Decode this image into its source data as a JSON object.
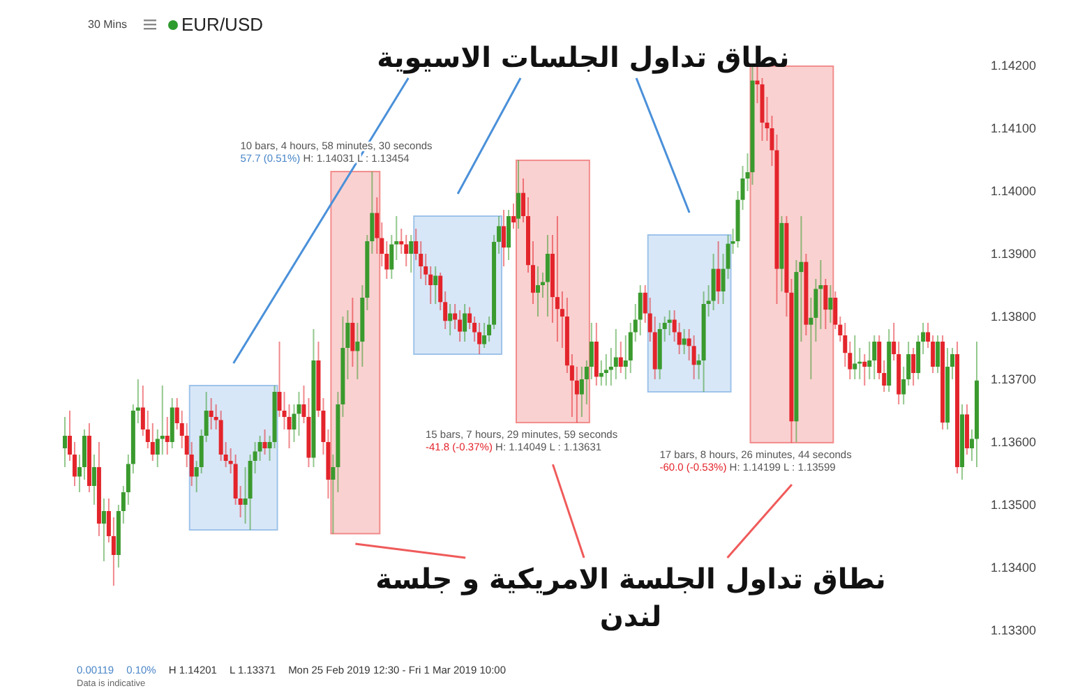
{
  "chart_data": {
    "type": "candlestick",
    "title": "EUR/USD",
    "subtitle": "30 Mins",
    "categories": [
      null,
      null,
      null,
      null,
      null,
      null,
      null,
      null,
      null,
      null,
      null,
      null,
      null,
      null,
      null,
      null,
      null,
      null,
      null,
      null,
      null,
      null,
      null,
      null,
      null,
      null,
      null,
      null,
      null,
      null,
      null,
      null,
      null,
      null,
      null,
      null,
      null,
      null,
      null,
      null,
      null,
      null,
      null,
      null,
      null,
      null,
      null,
      null,
      null,
      null,
      null,
      null,
      null,
      null,
      null,
      null,
      null,
      null,
      null,
      null,
      null,
      null,
      null,
      null,
      null,
      null,
      null,
      null,
      null,
      null,
      null,
      null,
      null,
      null,
      null,
      null,
      null,
      null,
      null,
      null,
      null,
      null,
      null,
      null,
      null,
      null,
      null,
      null,
      null,
      null,
      null,
      null,
      null,
      null,
      null,
      null,
      null,
      null,
      null,
      null,
      null,
      null,
      null,
      null,
      null,
      null,
      null,
      null,
      null,
      null,
      null,
      null,
      null,
      null,
      null,
      null,
      null,
      null,
      null,
      null,
      null,
      null,
      null,
      null,
      null,
      null,
      null,
      null,
      null,
      null,
      null,
      null,
      null,
      null,
      null,
      null,
      null,
      null,
      null,
      null,
      null,
      null,
      null,
      null,
      null,
      null,
      null,
      null,
      null,
      null,
      null,
      null,
      null,
      null,
      null,
      null,
      null,
      null,
      null,
      null,
      null,
      null,
      null,
      null,
      null,
      null,
      null,
      null,
      null,
      null,
      null,
      null,
      null,
      null,
      null,
      null,
      null,
      null,
      null,
      null,
      null,
      null,
      null,
      null,
      null,
      null,
      null,
      null
    ],
    "ohlc": [
      [
        1.1359,
        1.1364,
        1.1356,
        1.1361
      ],
      [
        1.1361,
        1.1365,
        1.1357,
        1.1358
      ],
      [
        1.1358,
        1.136,
        1.1353,
        1.13545
      ],
      [
        1.13545,
        1.1358,
        1.1352,
        1.1356
      ],
      [
        1.1356,
        1.1362,
        1.1354,
        1.1361
      ],
      [
        1.1361,
        1.1363,
        1.1352,
        1.1353
      ],
      [
        1.1353,
        1.1358,
        1.135,
        1.1356
      ],
      [
        1.1356,
        1.136,
        1.1345,
        1.1347
      ],
      [
        1.1347,
        1.1351,
        1.1341,
        1.1349
      ],
      [
        1.1349,
        1.1351,
        1.1344,
        1.1345
      ],
      [
        1.1345,
        1.1348,
        1.13371,
        1.1342
      ],
      [
        1.1342,
        1.135,
        1.134,
        1.1349
      ],
      [
        1.1349,
        1.1353,
        1.1347,
        1.1352
      ],
      [
        1.1352,
        1.1358,
        1.135,
        1.13565
      ],
      [
        1.13565,
        1.1366,
        1.1355,
        1.1365
      ],
      [
        1.1365,
        1.137,
        1.1363,
        1.13655
      ],
      [
        1.13655,
        1.1369,
        1.1361,
        1.1362
      ],
      [
        1.1362,
        1.1365,
        1.1359,
        1.136
      ],
      [
        1.136,
        1.1363,
        1.1357,
        1.1358
      ],
      [
        1.1358,
        1.1362,
        1.1356,
        1.13605
      ],
      [
        1.13605,
        1.1369,
        1.1358,
        1.1361
      ],
      [
        1.1361,
        1.1364,
        1.1358,
        1.136
      ],
      [
        1.136,
        1.1367,
        1.1359,
        1.13655
      ],
      [
        1.13655,
        1.1367,
        1.1362,
        1.1363
      ],
      [
        1.1363,
        1.1365,
        1.1359,
        1.1361
      ],
      [
        1.1361,
        1.1363,
        1.1356,
        1.1358
      ],
      [
        1.1358,
        1.136,
        1.1353,
        1.13545
      ],
      [
        1.13545,
        1.1357,
        1.1352,
        1.1356
      ],
      [
        1.1356,
        1.1362,
        1.1355,
        1.1361
      ],
      [
        1.1361,
        1.1368,
        1.136,
        1.1365
      ],
      [
        1.1365,
        1.1367,
        1.1362,
        1.1364
      ],
      [
        1.1364,
        1.1366,
        1.1362,
        1.13635
      ],
      [
        1.13635,
        1.1365,
        1.1357,
        1.1358
      ],
      [
        1.1358,
        1.136,
        1.1356,
        1.1357
      ],
      [
        1.1357,
        1.1359,
        1.1355,
        1.13565
      ],
      [
        1.13565,
        1.1358,
        1.135,
        1.1351
      ],
      [
        1.1351,
        1.1353,
        1.1348,
        1.135
      ],
      [
        1.135,
        1.1356,
        1.1347,
        1.1351
      ],
      [
        1.1351,
        1.1358,
        1.1346,
        1.1357
      ],
      [
        1.1357,
        1.136,
        1.1355,
        1.13585
      ],
      [
        1.13585,
        1.1361,
        1.1357,
        1.136
      ],
      [
        1.136,
        1.1362,
        1.1358,
        1.1359
      ],
      [
        1.1359,
        1.1361,
        1.1357,
        1.136
      ],
      [
        1.136,
        1.1369,
        1.1359,
        1.1368
      ],
      [
        1.1368,
        1.1376,
        1.1364,
        1.1365
      ],
      [
        1.1365,
        1.1368,
        1.1362,
        1.1364
      ],
      [
        1.1364,
        1.1366,
        1.1359,
        1.1362
      ],
      [
        1.1362,
        1.1366,
        1.136,
        1.13645
      ],
      [
        1.13645,
        1.1368,
        1.1361,
        1.1366
      ],
      [
        1.1366,
        1.1369,
        1.1363,
        1.1364
      ],
      [
        1.1364,
        1.1367,
        1.1356,
        1.13575
      ],
      [
        1.13575,
        1.1378,
        1.1356,
        1.1373
      ],
      [
        1.1373,
        1.1376,
        1.1364,
        1.1365
      ],
      [
        1.1365,
        1.1367,
        1.1358,
        1.136
      ],
      [
        1.136,
        1.1362,
        1.1351,
        1.1354
      ],
      [
        1.1354,
        1.1358,
        1.13454,
        1.1356
      ],
      [
        1.1356,
        1.1368,
        1.1352,
        1.1366
      ],
      [
        1.1366,
        1.138,
        1.1364,
        1.1375
      ],
      [
        1.1375,
        1.1381,
        1.137,
        1.1379
      ],
      [
        1.1379,
        1.1383,
        1.1372,
        1.13745
      ],
      [
        1.13745,
        1.1379,
        1.137,
        1.1376
      ],
      [
        1.1376,
        1.1385,
        1.1372,
        1.1383
      ],
      [
        1.1383,
        1.1393,
        1.1381,
        1.1392
      ],
      [
        1.1392,
        1.14031,
        1.139,
        1.13965
      ],
      [
        1.13965,
        1.1399,
        1.139,
        1.13925
      ],
      [
        1.13925,
        1.1395,
        1.1388,
        1.139
      ],
      [
        1.139,
        1.1392,
        1.1386,
        1.13875
      ],
      [
        1.13875,
        1.1393,
        1.1386,
        1.13915
      ],
      [
        1.13915,
        1.1396,
        1.1389,
        1.1392
      ],
      [
        1.1392,
        1.1394,
        1.139,
        1.13915
      ],
      [
        1.13915,
        1.1393,
        1.1388,
        1.139
      ],
      [
        1.139,
        1.1393,
        1.1387,
        1.1392
      ],
      [
        1.1392,
        1.1394,
        1.1389,
        1.139
      ],
      [
        1.139,
        1.1392,
        1.1386,
        1.1388
      ],
      [
        1.1388,
        1.139,
        1.1385,
        1.13867
      ],
      [
        1.13867,
        1.1388,
        1.1382,
        1.1385
      ],
      [
        1.1385,
        1.1388,
        1.1382,
        1.13865
      ],
      [
        1.13865,
        1.1387,
        1.1381,
        1.13823
      ],
      [
        1.13823,
        1.1384,
        1.1378,
        1.13793
      ],
      [
        1.13793,
        1.1382,
        1.1377,
        1.13805
      ],
      [
        1.13805,
        1.1382,
        1.1378,
        1.13795
      ],
      [
        1.13795,
        1.1381,
        1.1376,
        1.13776
      ],
      [
        1.13776,
        1.1382,
        1.1376,
        1.13805
      ],
      [
        1.13805,
        1.13815,
        1.1378,
        1.1379
      ],
      [
        1.1379,
        1.138,
        1.1376,
        1.13775
      ],
      [
        1.13775,
        1.1379,
        1.1374,
        1.13756
      ],
      [
        1.13756,
        1.1379,
        1.1375,
        1.1377
      ],
      [
        1.1377,
        1.138,
        1.1376,
        1.13787
      ],
      [
        1.13787,
        1.1393,
        1.1378,
        1.13919
      ],
      [
        1.13919,
        1.1396,
        1.139,
        1.13944
      ],
      [
        1.13944,
        1.1397,
        1.1388,
        1.1391
      ],
      [
        1.1391,
        1.1397,
        1.1389,
        1.1396
      ],
      [
        1.1396,
        1.1398,
        1.1394,
        1.1395
      ],
      [
        1.13956,
        1.14049,
        1.1394,
        1.13997
      ],
      [
        1.13997,
        1.1402,
        1.1395,
        1.1396
      ],
      [
        1.1396,
        1.1399,
        1.1387,
        1.13882
      ],
      [
        1.13882,
        1.1392,
        1.1382,
        1.13838
      ],
      [
        1.13838,
        1.1388,
        1.138,
        1.1385
      ],
      [
        1.1385,
        1.1387,
        1.1383,
        1.13855
      ],
      [
        1.13855,
        1.1393,
        1.138,
        1.139
      ],
      [
        1.139,
        1.1393,
        1.1379,
        1.13831
      ],
      [
        1.13831,
        1.1396,
        1.1376,
        1.13812
      ],
      [
        1.13812,
        1.1384,
        1.1375,
        1.138
      ],
      [
        1.138,
        1.1383,
        1.1371,
        1.13722
      ],
      [
        1.13722,
        1.1374,
        1.1364,
        1.13698
      ],
      [
        1.13698,
        1.1372,
        1.13631,
        1.13676
      ],
      [
        1.13676,
        1.1372,
        1.1364,
        1.137
      ],
      [
        1.137,
        1.1373,
        1.1366,
        1.1372
      ],
      [
        1.1372,
        1.1379,
        1.137,
        1.1376
      ],
      [
        1.1376,
        1.1379,
        1.1369,
        1.13704
      ],
      [
        1.13704,
        1.1373,
        1.1369,
        1.1371
      ],
      [
        1.1371,
        1.1374,
        1.1369,
        1.13715
      ],
      [
        1.13715,
        1.1375,
        1.1369,
        1.1372
      ],
      [
        1.1372,
        1.1378,
        1.137,
        1.13735
      ],
      [
        1.13735,
        1.1376,
        1.1371,
        1.1372
      ],
      [
        1.1372,
        1.1377,
        1.137,
        1.1373
      ],
      [
        1.1373,
        1.1379,
        1.1371,
        1.13775
      ],
      [
        1.13775,
        1.1382,
        1.1376,
        1.13795
      ],
      [
        1.13795,
        1.1385,
        1.1377,
        1.13838
      ],
      [
        1.13838,
        1.1385,
        1.1379,
        1.13805
      ],
      [
        1.13805,
        1.1383,
        1.1376,
        1.13775
      ],
      [
        1.13775,
        1.138,
        1.137,
        1.13716
      ],
      [
        1.13716,
        1.1379,
        1.137,
        1.1378
      ],
      [
        1.1378,
        1.138,
        1.1376,
        1.1379
      ],
      [
        1.1379,
        1.1381,
        1.1377,
        1.13795
      ],
      [
        1.13795,
        1.1381,
        1.1376,
        1.13775
      ],
      [
        1.13775,
        1.1379,
        1.1374,
        1.13755
      ],
      [
        1.13755,
        1.1378,
        1.1374,
        1.13765
      ],
      [
        1.13765,
        1.1378,
        1.1373,
        1.13753
      ],
      [
        1.13753,
        1.1377,
        1.137,
        1.13723
      ],
      [
        1.13723,
        1.1374,
        1.137,
        1.1373
      ],
      [
        1.1373,
        1.1384,
        1.1368,
        1.1382
      ],
      [
        1.1382,
        1.1385,
        1.138,
        1.13825
      ],
      [
        1.13825,
        1.139,
        1.1381,
        1.13876
      ],
      [
        1.13876,
        1.1392,
        1.1382,
        1.1384
      ],
      [
        1.1384,
        1.139,
        1.1382,
        1.13876
      ],
      [
        1.13876,
        1.1393,
        1.1386,
        1.13916
      ],
      [
        1.13916,
        1.1394,
        1.139,
        1.1392
      ],
      [
        1.1392,
        1.14,
        1.1391,
        1.13986
      ],
      [
        1.13986,
        1.1404,
        1.1397,
        1.1402
      ],
      [
        1.1402,
        1.1406,
        1.14,
        1.1403
      ],
      [
        1.1403,
        1.14199,
        1.1401,
        1.14176
      ],
      [
        1.14176,
        1.14199,
        1.1414,
        1.1417
      ],
      [
        1.1417,
        1.1418,
        1.1408,
        1.14109
      ],
      [
        1.14109,
        1.1415,
        1.1408,
        1.141
      ],
      [
        1.141,
        1.1412,
        1.1404,
        1.14065
      ],
      [
        1.14065,
        1.1409,
        1.1382,
        1.13876
      ],
      [
        1.13876,
        1.1396,
        1.1384,
        1.13949
      ],
      [
        1.13949,
        1.1396,
        1.138,
        1.13838
      ],
      [
        1.13838,
        1.1386,
        1.13599,
        1.13633
      ],
      [
        1.13633,
        1.1389,
        1.136,
        1.13871
      ],
      [
        1.13871,
        1.1396,
        1.1376,
        1.13887
      ],
      [
        1.13887,
        1.139,
        1.1377,
        1.13787
      ],
      [
        1.13787,
        1.1383,
        1.137,
        1.13798
      ],
      [
        1.13798,
        1.1386,
        1.1376,
        1.13844
      ],
      [
        1.13844,
        1.1389,
        1.1378,
        1.1385
      ],
      [
        1.1385,
        1.1386,
        1.1378,
        1.13811
      ],
      [
        1.13811,
        1.1385,
        1.1379,
        1.1383
      ],
      [
        1.1383,
        1.1384,
        1.1378,
        1.13787
      ],
      [
        1.13787,
        1.138,
        1.1376,
        1.1377
      ],
      [
        1.1377,
        1.1379,
        1.1372,
        1.13742
      ],
      [
        1.13742,
        1.1376,
        1.137,
        1.13716
      ],
      [
        1.13716,
        1.1377,
        1.137,
        1.13725
      ],
      [
        1.13725,
        1.1375,
        1.137,
        1.13728
      ],
      [
        1.13728,
        1.1374,
        1.1369,
        1.1372
      ],
      [
        1.1372,
        1.1376,
        1.137,
        1.1373
      ],
      [
        1.1373,
        1.1377,
        1.137,
        1.1376
      ],
      [
        1.1376,
        1.1377,
        1.137,
        1.1371
      ],
      [
        1.1371,
        1.1373,
        1.1368,
        1.1369
      ],
      [
        1.1369,
        1.1378,
        1.1368,
        1.1376
      ],
      [
        1.1376,
        1.1379,
        1.1373,
        1.1374
      ],
      [
        1.1374,
        1.1376,
        1.1366,
        1.13676
      ],
      [
        1.13676,
        1.1372,
        1.1366,
        1.137
      ],
      [
        1.137,
        1.1376,
        1.1369,
        1.1374
      ],
      [
        1.1374,
        1.1375,
        1.1369,
        1.1371
      ],
      [
        1.1371,
        1.1377,
        1.137,
        1.1376
      ],
      [
        1.1376,
        1.1379,
        1.1374,
        1.13775
      ],
      [
        1.13775,
        1.1379,
        1.1375,
        1.1376
      ],
      [
        1.1376,
        1.1377,
        1.1371,
        1.1372
      ],
      [
        1.1372,
        1.1377,
        1.1371,
        1.1376
      ],
      [
        1.1376,
        1.1377,
        1.1362,
        1.13631
      ],
      [
        1.13631,
        1.1375,
        1.1362,
        1.1372
      ],
      [
        1.1372,
        1.1375,
        1.137,
        1.1374
      ],
      [
        1.1374,
        1.1376,
        1.1355,
        1.1356
      ],
      [
        1.1356,
        1.1366,
        1.1354,
        1.13644
      ],
      [
        1.13644,
        1.1366,
        1.1358,
        1.1359
      ],
      [
        1.1359,
        1.1362,
        1.1357,
        1.13605
      ],
      [
        1.13605,
        1.1376,
        1.1356,
        1.13698
      ]
    ],
    "colors": [
      "#3a9a2e",
      "#e3242b",
      "#e3242b",
      "#3a9a2e",
      "#3a9a2e",
      "#e3242b",
      "#3a9a2e",
      "#e3242b",
      "#3a9a2e",
      "#e3242b",
      "#e3242b",
      "#3a9a2e",
      "#3a9a2e",
      "#3a9a2e",
      "#3a9a2e",
      "#3a9a2e",
      "#e3242b",
      "#e3242b",
      "#e3242b",
      "#3a9a2e",
      "#3a9a2e",
      "#e3242b",
      "#3a9a2e",
      "#e3242b",
      "#e3242b",
      "#e3242b",
      "#e3242b",
      "#3a9a2e",
      "#3a9a2e",
      "#3a9a2e",
      "#e3242b",
      "#e3242b",
      "#e3242b",
      "#e3242b",
      "#e3242b",
      "#e3242b",
      "#e3242b",
      "#3a9a2e",
      "#3a9a2e",
      "#3a9a2e",
      "#3a9a2e",
      "#e3242b",
      "#3a9a2e",
      "#3a9a2e",
      "#e3242b",
      "#e3242b",
      "#e3242b",
      "#3a9a2e",
      "#3a9a2e",
      "#e3242b",
      "#e3242b",
      "#3a9a2e",
      "#e3242b",
      "#e3242b",
      "#e3242b",
      "#3a9a2e",
      "#3a9a2e",
      "#3a9a2e",
      "#3a9a2e",
      "#e3242b",
      "#3a9a2e",
      "#3a9a2e",
      "#3a9a2e",
      "#3a9a2e",
      "#e3242b",
      "#e3242b",
      "#e3242b",
      "#3a9a2e",
      "#3a9a2e",
      "#e3242b",
      "#e3242b",
      "#3a9a2e",
      "#e3242b",
      "#e3242b",
      "#e3242b",
      "#e3242b",
      "#3a9a2e",
      "#e3242b",
      "#e3242b",
      "#3a9a2e",
      "#e3242b",
      "#e3242b",
      "#3a9a2e",
      "#e3242b",
      "#e3242b",
      "#e3242b",
      "#3a9a2e",
      "#3a9a2e",
      "#3a9a2e",
      "#3a9a2e",
      "#e3242b",
      "#3a9a2e",
      "#e3242b",
      "#3a9a2e",
      "#e3242b",
      "#e3242b",
      "#e3242b",
      "#3a9a2e",
      "#3a9a2e",
      "#3a9a2e",
      "#e3242b",
      "#e3242b",
      "#e3242b",
      "#e3242b",
      "#e3242b",
      "#e3242b",
      "#3a9a2e",
      "#3a9a2e",
      "#3a9a2e",
      "#e3242b",
      "#3a9a2e",
      "#3a9a2e",
      "#3a9a2e",
      "#3a9a2e",
      "#e3242b",
      "#3a9a2e",
      "#3a9a2e",
      "#3a9a2e",
      "#3a9a2e",
      "#e3242b",
      "#e3242b",
      "#e3242b",
      "#3a9a2e",
      "#3a9a2e",
      "#3a9a2e",
      "#e3242b",
      "#e3242b",
      "#3a9a2e",
      "#e3242b",
      "#e3242b",
      "#3a9a2e",
      "#3a9a2e",
      "#3a9a2e",
      "#3a9a2e",
      "#e3242b",
      "#3a9a2e",
      "#3a9a2e",
      "#3a9a2e",
      "#3a9a2e",
      "#3a9a2e",
      "#3a9a2e",
      "#3a9a2e",
      "#e3242b",
      "#e3242b",
      "#e3242b",
      "#e3242b",
      "#e3242b",
      "#3a9a2e",
      "#e3242b",
      "#e3242b",
      "#3a9a2e",
      "#3a9a2e",
      "#e3242b",
      "#3a9a2e",
      "#3a9a2e",
      "#3a9a2e",
      "#e3242b",
      "#3a9a2e",
      "#e3242b",
      "#e3242b",
      "#e3242b",
      "#e3242b",
      "#3a9a2e",
      "#3a9a2e",
      "#e3242b",
      "#3a9a2e",
      "#3a9a2e",
      "#e3242b",
      "#e3242b",
      "#3a9a2e",
      "#e3242b",
      "#e3242b",
      "#3a9a2e",
      "#3a9a2e",
      "#e3242b",
      "#3a9a2e",
      "#3a9a2e",
      "#e3242b",
      "#e3242b",
      "#3a9a2e",
      "#e3242b",
      "#3a9a2e",
      "#3a9a2e",
      "#e3242b",
      "#3a9a2e",
      "#e3242b",
      "#3a9a2e",
      "#3a9a2e"
    ],
    "ylim": [
      1.133,
      1.142
    ],
    "yticks": [
      {
        "value": 1.133,
        "label": "1.13300"
      },
      {
        "value": 1.134,
        "label": "1.13400"
      },
      {
        "value": 1.135,
        "label": "1.13500"
      },
      {
        "value": 1.136,
        "label": "1.13600"
      },
      {
        "value": 1.137,
        "label": "1.13700"
      },
      {
        "value": 1.138,
        "label": "1.13800"
      },
      {
        "value": 1.139,
        "label": "1.13900"
      },
      {
        "value": 1.14,
        "label": "1.14000"
      },
      {
        "value": 1.141,
        "label": "1.14100"
      },
      {
        "value": 1.142,
        "label": "1.14200"
      }
    ],
    "tick_labels": "y",
    "annotations": [
      "نطاق تداول الجلسات الاسيوية",
      "نطاق تداول الجلسة الامريكية و جلسة\nلندن",
      "10 bars, 4 hours, 58 minutes, 30 seconds\n57.7 (0.51%) H: 1.14031 L : 1.13454",
      "15 bars, 7 hours, 29 minutes, 59 seconds\n-41.8 (-0.37%) H: 1.14049 L : 1.13631",
      "17 bars, 8 hours, 26 minutes, 44 seconds\n-60.0 (-0.53%) H: 1.14199 L : 1.13599",
      "0.00119",
      "0.10%",
      "H 1.14201",
      "L 1.13371",
      "Mon 25 Feb 2019 12:30 - Fri 1 Mar 2019 10:00",
      "Data is indicative"
    ]
  }
}
